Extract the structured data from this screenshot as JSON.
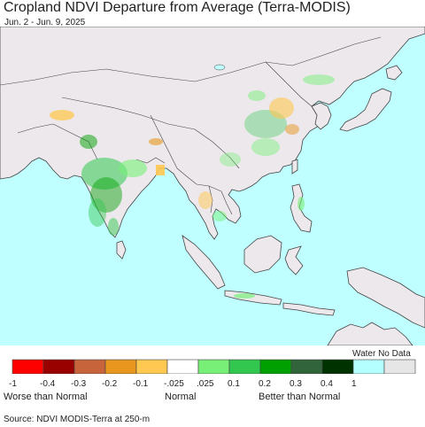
{
  "title": "Cropland NDVI Departure from Average (Terra-MODIS)",
  "date_range": "Jun. 2 - Jun. 9, 2025",
  "colors": {
    "water": "#bfffff",
    "land": "#ece8ec",
    "border": "#444444"
  },
  "legend": {
    "water_no_data_label": "Water No Data",
    "swatches": [
      {
        "color": "#ff0000"
      },
      {
        "color": "#990000"
      },
      {
        "color": "#c8643c"
      },
      {
        "color": "#e8961e"
      },
      {
        "color": "#ffc850"
      },
      {
        "color": "#ffffff"
      },
      {
        "color": "#78f078"
      },
      {
        "color": "#32c850"
      },
      {
        "color": "#00a000"
      },
      {
        "color": "#32643c"
      },
      {
        "color": "#003200"
      },
      {
        "color": "#b4ffff"
      },
      {
        "color": "#e6e6e6"
      }
    ],
    "tick_labels": [
      "-1",
      "-0.4",
      "-0.3",
      "-0.2",
      "-0.1",
      "-.025",
      ".025",
      "0.1",
      "0.2",
      "0.3",
      "0.4",
      "1"
    ],
    "categories": [
      "Worse than Normal",
      "Normal",
      "Better than Normal"
    ]
  },
  "source": "Source: NDVI MODIS-Terra at 250-m"
}
